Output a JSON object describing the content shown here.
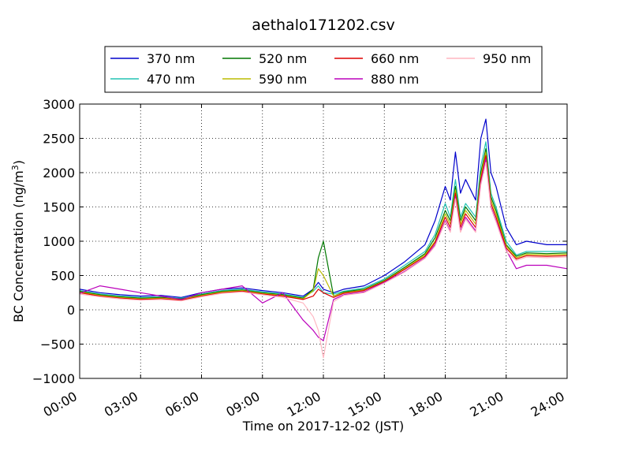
{
  "chart_data": {
    "type": "line",
    "title": "aethalo171202.csv",
    "xlabel": "Time on 2017-12-02 (JST)",
    "ylabel": "BC Concentration (ng/m³)",
    "ylabel_parts": {
      "main": "BC Concentration (ng/m",
      "sup": "3",
      "end": ")"
    },
    "xlim": [
      "00:00",
      "24:00"
    ],
    "ylim": [
      -1000,
      3000
    ],
    "x_ticks": [
      "00:00",
      "03:00",
      "06:00",
      "09:00",
      "12:00",
      "15:00",
      "18:00",
      "21:00",
      "24:00"
    ],
    "y_ticks": [
      3000,
      2500,
      2000,
      1500,
      1000,
      500,
      0,
      -500,
      -1000
    ],
    "y_tick_labels": [
      "3000",
      "2500",
      "2000",
      "1500",
      "1000",
      "500",
      "0",
      "−500",
      "−1000"
    ],
    "grid": true,
    "legend_position": "top",
    "x": [
      "00:00",
      "01:00",
      "02:00",
      "03:00",
      "04:00",
      "05:00",
      "06:00",
      "07:00",
      "08:00",
      "09:00",
      "10:00",
      "11:00",
      "11:30",
      "11:45",
      "12:00",
      "12:30",
      "13:00",
      "14:00",
      "15:00",
      "16:00",
      "17:00",
      "17:30",
      "18:00",
      "18:15",
      "18:30",
      "18:45",
      "19:00",
      "19:30",
      "19:45",
      "20:00",
      "20:15",
      "20:30",
      "21:00",
      "21:30",
      "22:00",
      "23:00",
      "24:00"
    ],
    "series": [
      {
        "name": "370 nm",
        "color": "#0000cc",
        "values": [
          300,
          250,
          220,
          200,
          210,
          180,
          250,
          300,
          320,
          280,
          250,
          200,
          300,
          400,
          300,
          250,
          300,
          350,
          500,
          700,
          950,
          1300,
          1800,
          1600,
          2300,
          1700,
          1900,
          1600,
          2500,
          2780,
          2000,
          1800,
          1200,
          950,
          1000,
          950,
          950
        ]
      },
      {
        "name": "470 nm",
        "color": "#22c4b4",
        "values": [
          280,
          230,
          200,
          180,
          190,
          170,
          230,
          280,
          300,
          260,
          230,
          180,
          270,
          350,
          250,
          230,
          270,
          320,
          450,
          650,
          850,
          1100,
          1550,
          1350,
          1900,
          1350,
          1550,
          1350,
          2100,
          2450,
          1700,
          1500,
          1000,
          800,
          850,
          850,
          850
        ]
      },
      {
        "name": "520 nm",
        "color": "#007700",
        "values": [
          270,
          220,
          190,
          170,
          180,
          160,
          220,
          270,
          290,
          250,
          220,
          170,
          300,
          760,
          1000,
          200,
          260,
          300,
          430,
          620,
          820,
          1050,
          1450,
          1300,
          1800,
          1300,
          1500,
          1300,
          2000,
          2350,
          1650,
          1450,
          950,
          780,
          830,
          820,
          830
        ]
      },
      {
        "name": "590 nm",
        "color": "#bbbb00",
        "values": [
          260,
          210,
          180,
          160,
          170,
          150,
          210,
          260,
          280,
          240,
          210,
          160,
          280,
          600,
          500,
          200,
          250,
          290,
          420,
          600,
          800,
          1000,
          1400,
          1250,
          1750,
          1250,
          1450,
          1250,
          1950,
          2300,
          1600,
          1400,
          930,
          760,
          810,
          800,
          810
        ]
      },
      {
        "name": "660 nm",
        "color": "#dd0000",
        "values": [
          250,
          200,
          170,
          150,
          160,
          140,
          200,
          250,
          270,
          230,
          200,
          150,
          200,
          300,
          250,
          180,
          240,
          280,
          410,
          590,
          780,
          980,
          1350,
          1200,
          1700,
          1200,
          1400,
          1200,
          1900,
          2250,
          1550,
          1350,
          900,
          740,
          790,
          780,
          790
        ]
      },
      {
        "name": "880 nm",
        "color": "#bb00bb",
        "values": [
          240,
          350,
          300,
          250,
          200,
          150,
          250,
          300,
          350,
          100,
          250,
          -150,
          -300,
          -400,
          -450,
          150,
          220,
          260,
          400,
          560,
          760,
          950,
          1300,
          1150,
          1650,
          1150,
          1350,
          1150,
          1850,
          2200,
          1500,
          1300,
          870,
          600,
          650,
          650,
          600
        ]
      },
      {
        "name": "950 nm",
        "color": "#ffb6c1",
        "values": [
          230,
          190,
          160,
          140,
          150,
          130,
          190,
          240,
          260,
          220,
          180,
          100,
          -100,
          -300,
          -700,
          120,
          210,
          250,
          390,
          550,
          750,
          930,
          1280,
          1130,
          1620,
          1130,
          1320,
          1130,
          1820,
          2150,
          1480,
          1280,
          850,
          720,
          770,
          760,
          770
        ]
      }
    ]
  }
}
